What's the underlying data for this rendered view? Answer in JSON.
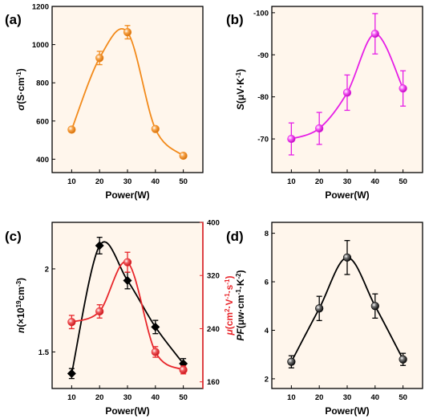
{
  "figure": {
    "panels": [
      {
        "label": "(a)",
        "xlabel": "Power(W)"
      },
      {
        "label": "(b)",
        "xlabel": "Power(W)"
      },
      {
        "label": "(c)",
        "xlabel": "Power(W)"
      },
      {
        "label": "(d)",
        "xlabel": "Power(W)"
      }
    ],
    "colors": {
      "panel_background": "#fff6ec",
      "orange": "#f28a1b",
      "magenta": "#e61ee6",
      "black": "#000000",
      "red": "#e8262b"
    }
  },
  "chart_data": [
    {
      "type": "line",
      "panel": "(a)",
      "x": [
        10,
        20,
        30,
        40,
        50
      ],
      "xticks": [
        "10",
        "20",
        "30",
        "40",
        "50"
      ],
      "xlim": [
        3,
        57
      ],
      "ylim": [
        330,
        1200
      ],
      "yticks": [
        400,
        600,
        800,
        1000,
        1200
      ],
      "ylabel": "σ(S·cm⁻¹)",
      "series": [
        {
          "values": [
            555,
            930,
            1065,
            558,
            418
          ],
          "errors": [
            0,
            35,
            35,
            0,
            0
          ],
          "color": "#f28a1b",
          "marker": "circle",
          "smooth": true
        }
      ]
    },
    {
      "type": "line",
      "panel": "(b)",
      "x": [
        10,
        20,
        30,
        40,
        50
      ],
      "xticks": [
        "10",
        "20",
        "30",
        "40",
        "50"
      ],
      "xlim": [
        3,
        57
      ],
      "ylim": [
        -62,
        -101.5
      ],
      "yticks": [
        -70,
        -80,
        -90,
        -100
      ],
      "ylabel": "S(μV·K⁻¹)",
      "series": [
        {
          "values": [
            -70,
            -72.5,
            -81,
            -95,
            -82
          ],
          "errors": [
            3.8,
            3.8,
            4.2,
            4.8,
            4.2
          ],
          "color": "#e61ee6",
          "marker": "circle",
          "smooth": true
        }
      ]
    },
    {
      "type": "line",
      "panel": "(c)",
      "x": [
        10,
        20,
        30,
        40,
        50
      ],
      "xticks": [
        "10",
        "20",
        "30",
        "40",
        "50"
      ],
      "xlim": [
        3,
        57
      ],
      "ylim": [
        1.28,
        2.28
      ],
      "yticks": [
        1.5,
        2.0
      ],
      "ylabel": "n(×10¹⁹cm⁻³)",
      "y2lim": [
        150,
        400
      ],
      "y2ticks": [
        160,
        240,
        320,
        400
      ],
      "y2label": "μ(cm²·V⁻¹·s⁻¹)",
      "series": [
        {
          "values": [
            1.37,
            2.14,
            1.93,
            1.65,
            1.43
          ],
          "errors": [
            0.03,
            0.05,
            0.05,
            0.04,
            0.03
          ],
          "color": "#000000",
          "marker": "diamond",
          "axis": "left",
          "smooth": true
        },
        {
          "values": [
            250,
            266,
            340,
            205,
            178
          ],
          "errors": [
            10,
            10,
            15,
            8,
            6
          ],
          "color": "#e8262b",
          "marker": "circle",
          "axis": "right",
          "smooth": true
        }
      ]
    },
    {
      "type": "line",
      "panel": "(d)",
      "x": [
        10,
        20,
        30,
        40,
        50
      ],
      "xticks": [
        "10",
        "20",
        "30",
        "40",
        "50"
      ],
      "xlim": [
        3,
        57
      ],
      "ylim": [
        1.6,
        8.45
      ],
      "yticks": [
        2,
        4,
        6,
        8
      ],
      "ylabel": "PF(μw·cm⁻¹·K⁻²)",
      "series": [
        {
          "values": [
            2.7,
            4.9,
            7.0,
            5.0,
            2.8
          ],
          "errors": [
            0.25,
            0.5,
            0.7,
            0.5,
            0.25
          ],
          "color": "#000000",
          "marker": "circle",
          "smooth": true
        }
      ]
    }
  ]
}
